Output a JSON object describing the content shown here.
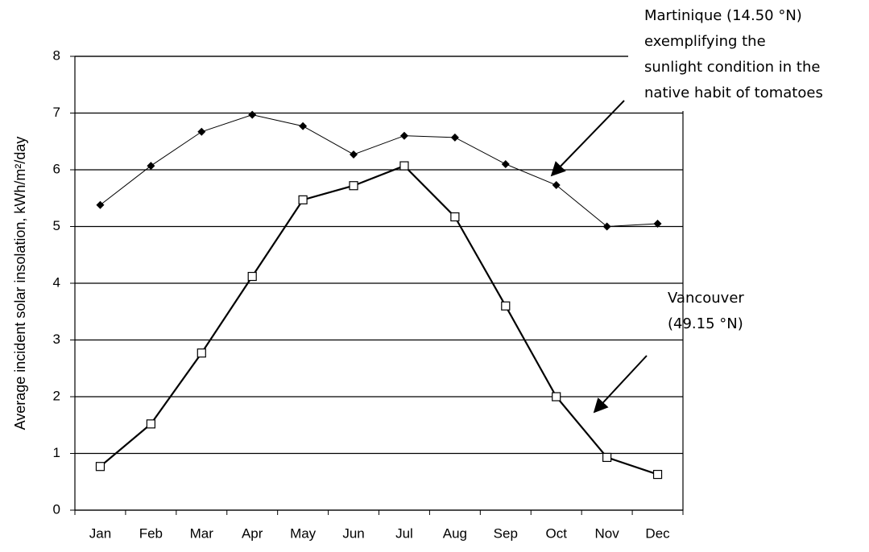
{
  "chart_data": {
    "type": "line",
    "ylabel": "Average incident solar insolation, kWh/m²/day",
    "categories": [
      "Jan",
      "Feb",
      "Mar",
      "Apr",
      "May",
      "Jun",
      "Jul",
      "Aug",
      "Sep",
      "Oct",
      "Nov",
      "Dec"
    ],
    "series": [
      {
        "color": "#000000",
        "marker": "diamond",
        "values": [
          5.38,
          6.07,
          6.67,
          6.97,
          6.77,
          6.27,
          6.6,
          6.57,
          6.1,
          5.73,
          5.0,
          5.05
        ]
      },
      {
        "color": "#000000",
        "marker": "square",
        "values": [
          0.77,
          1.52,
          2.77,
          4.12,
          5.47,
          5.72,
          6.07,
          5.17,
          3.6,
          2.0,
          0.93,
          0.63
        ]
      }
    ],
    "ylim": [
      0,
      8
    ],
    "yticks": [
      0,
      1,
      2,
      3,
      4,
      5,
      6,
      7,
      8
    ],
    "grid": true,
    "annotations": [
      {
        "lines": [
          "Martinique (14.50 °N)",
          "exemplifying the",
          "sunlight condition in the",
          "native habit of tomatoes"
        ]
      },
      {
        "lines": [
          "Vancouver",
          "(49.15 °N)"
        ]
      }
    ]
  }
}
